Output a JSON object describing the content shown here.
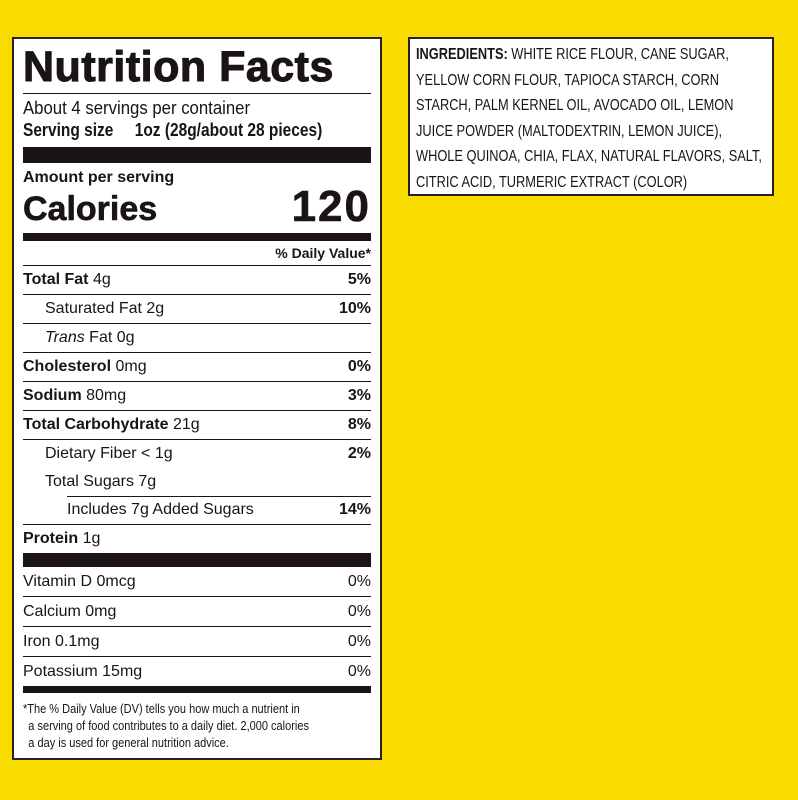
{
  "colors": {
    "background": "#f8dc00",
    "ink": "#1a1414",
    "panel": "#ffffff"
  },
  "label": {
    "title": "Nutrition Facts",
    "servings": "About 4 servings per container",
    "serving_size_label": "Serving size",
    "serving_size_value": "1oz (28g/about 28 pieces)",
    "amount_per_serving": "Amount per serving",
    "calories_label": "Calories",
    "calories_value": "120",
    "dv_header": "% Daily Value*",
    "nutrients": [
      {
        "name": "Total Fat",
        "amount": "4g",
        "dv": "5%"
      },
      {
        "name": "Saturated Fat",
        "amount": "2g",
        "dv": "10%"
      },
      {
        "name": "Trans",
        "name2": " Fat",
        "amount": "0g",
        "dv": ""
      },
      {
        "name": "Cholesterol",
        "amount": "0mg",
        "dv": "0%"
      },
      {
        "name": "Sodium",
        "amount": "80mg",
        "dv": "3%"
      },
      {
        "name": "Total Carbohydrate",
        "amount": "21g",
        "dv": "8%"
      },
      {
        "name": "Dietary Fiber",
        "amount": "< 1g",
        "dv": "2%"
      },
      {
        "name": "Total Sugars",
        "amount": "7g",
        "dv": ""
      },
      {
        "name": "Includes 7g Added Sugars",
        "amount": "",
        "dv": "14%"
      },
      {
        "name": "Protein",
        "amount": "1g",
        "dv": ""
      }
    ],
    "vitamins": [
      {
        "name": "Vitamin D",
        "amount": "0mcg",
        "dv": "0%"
      },
      {
        "name": "Calcium",
        "amount": "0mg",
        "dv": "0%"
      },
      {
        "name": "Iron",
        "amount": "0.1mg",
        "dv": "0%"
      },
      {
        "name": "Potassium",
        "amount": "15mg",
        "dv": "0%"
      }
    ],
    "footnote_1": "*The % Daily Value (DV) tells you how much a nutrient in",
    "footnote_2": "a serving of food contributes to a daily diet. 2,000 calories",
    "footnote_3": "a day is used for general nutrition advice."
  },
  "ingredients": {
    "label": "INGREDIENTS:",
    "text": " WHITE RICE FLOUR, CANE SUGAR, YELLOW CORN FLOUR, TAPIOCA STARCH, CORN STARCH, PALM KERNEL OIL, AVOCADO OIL, LEMON JUICE POWDER (MALTODEXTRIN, LEMON JUICE), WHOLE QUINOA, CHIA, FLAX, NATURAL FLAVORS, SALT, CITRIC ACID, TURMERIC EXTRACT (COLOR)"
  }
}
